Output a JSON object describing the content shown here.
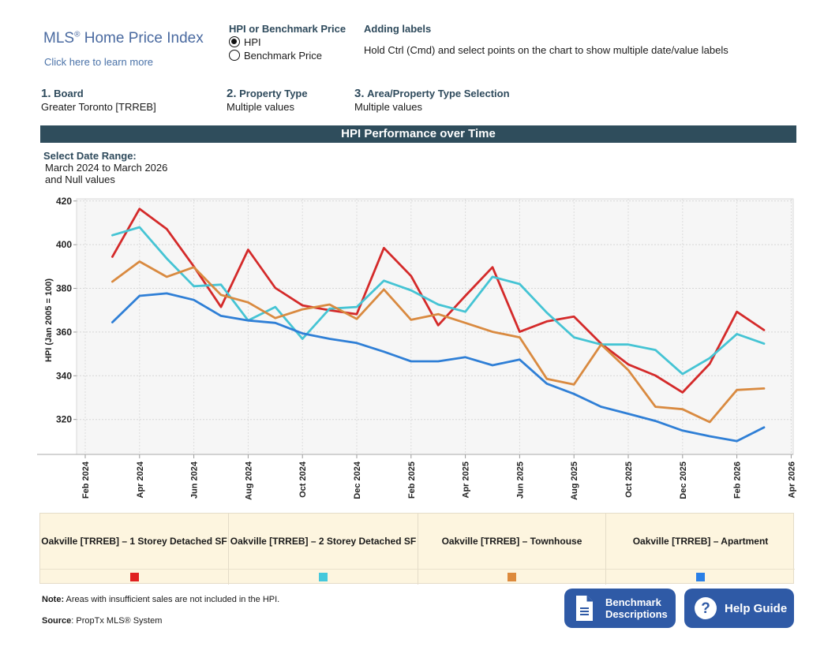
{
  "brand": {
    "title": "MLS",
    "reg": "®",
    "title_rest": " Home Price Index",
    "link": "Click here to learn more"
  },
  "hpi_toggle": {
    "heading": "HPI or Benchmark Price",
    "options": [
      {
        "label": "HPI",
        "selected": true
      },
      {
        "label": "Benchmark Price",
        "selected": false
      }
    ]
  },
  "labels_help": {
    "heading": "Adding labels",
    "text": "Hold Ctrl (Cmd) and select points on the chart to show multiple date/value labels"
  },
  "filters": [
    {
      "num": "1.",
      "label": "Board",
      "value": "Greater Toronto [TRREB]"
    },
    {
      "num": "2.",
      "label": "Property Type",
      "value": "Multiple values"
    },
    {
      "num": "3.",
      "label": "Area/Property Type Selection",
      "value": "Multiple values"
    }
  ],
  "banner": "HPI Performance over Time",
  "date_range": {
    "heading": "Select Date Range:",
    "line1": "March 2024 to March 2026",
    "line2": "and Null values"
  },
  "chart_data": {
    "type": "line",
    "title": "HPI Performance over Time",
    "xlabel": "",
    "ylabel": "HPI (Jan 2005 = 100)",
    "ylim": [
      304,
      421
    ],
    "yticks": [
      320,
      340,
      360,
      380,
      400,
      420
    ],
    "xticks": [
      "Feb 2024",
      "Apr 2024",
      "Jun 2024",
      "Aug 2024",
      "Oct 2024",
      "Dec 2024",
      "Feb 2025",
      "Apr 2025",
      "Jun 2025",
      "Aug 2025",
      "Oct 2025",
      "Dec 2025",
      "Feb 2026",
      "Apr 2026"
    ],
    "grid": true,
    "legend": "bottom",
    "x": [
      "Mar 2024",
      "Apr 2024",
      "May 2024",
      "Jun 2024",
      "Jul 2024",
      "Aug 2024",
      "Sep 2024",
      "Oct 2024",
      "Nov 2024",
      "Dec 2024",
      "Jan 2025",
      "Feb 2025",
      "Mar 2025",
      "Apr 2025",
      "May 2025",
      "Jun 2025",
      "Jul 2025",
      "Aug 2025",
      "Sep 2025",
      "Oct 2025",
      "Nov 2025",
      "Dec 2025",
      "Jan 2026",
      "Feb 2026",
      "Mar 2026"
    ],
    "series": [
      {
        "name": "Oakville [TRREB] – 1 Storey Detached SF",
        "color": "#d42a2a",
        "values": [
          394.5,
          416.4,
          407.2,
          390.0,
          371.5,
          397.7,
          380.2,
          372.2,
          370.0,
          368.2,
          398.5,
          385.7,
          363.1,
          376.6,
          389.7,
          360.1,
          364.9,
          367.1,
          354.7,
          345.2,
          340.1,
          332.4,
          345.5,
          369.3,
          360.9
        ]
      },
      {
        "name": "Oakville [TRREB] – 2 Storey Detached SF",
        "color": "#45c4d4",
        "values": [
          404.3,
          408.0,
          393.7,
          381.0,
          381.7,
          365.3,
          371.5,
          356.9,
          370.7,
          371.5,
          383.5,
          379.1,
          372.6,
          369.3,
          385.3,
          382.0,
          368.9,
          357.6,
          354.3,
          354.3,
          351.8,
          340.8,
          348.1,
          359.1,
          354.7
        ]
      },
      {
        "name": "Oakville [TRREB] – Townhouse",
        "color": "#d98a40",
        "values": [
          383.1,
          392.3,
          385.3,
          389.7,
          377.0,
          373.6,
          366.4,
          370.4,
          372.6,
          366.0,
          379.5,
          365.6,
          368.2,
          364.2,
          360.1,
          357.6,
          338.6,
          336.0,
          354.3,
          342.6,
          325.8,
          324.7,
          318.8,
          333.5,
          334.2
        ]
      },
      {
        "name": "Oakville [TRREB] – Apartment",
        "color": "#2f7fd6",
        "values": [
          364.5,
          376.6,
          377.7,
          374.7,
          367.4,
          365.3,
          364.2,
          359.4,
          356.9,
          355.0,
          351.0,
          346.6,
          346.6,
          348.5,
          344.8,
          347.4,
          336.4,
          331.7,
          325.8,
          322.6,
          319.3,
          314.9,
          312.3,
          310.1,
          316.4
        ]
      }
    ]
  },
  "legend_items": [
    {
      "label": "Oakville [TRREB] – 1 Storey Detached SF",
      "color": "#e02020"
    },
    {
      "label": "Oakville [TRREB] – 2 Storey Detached SF",
      "color": "#45c8dc"
    },
    {
      "label": "Oakville [TRREB] – Townhouse",
      "color": "#dd8a3c"
    },
    {
      "label": "Oakville [TRREB] – Apartment",
      "color": "#2a7fe6"
    }
  ],
  "footer": {
    "note_bold": "Note:",
    "note_text": " Areas with insufficient sales are not included in the HPI.",
    "source_bold": "Source",
    "source_text": ": PropTx MLS® System"
  },
  "buttons": {
    "benchmark_line1": "Benchmark",
    "benchmark_line2": "Descriptions",
    "help": "Help Guide",
    "help_glyph": "?"
  }
}
